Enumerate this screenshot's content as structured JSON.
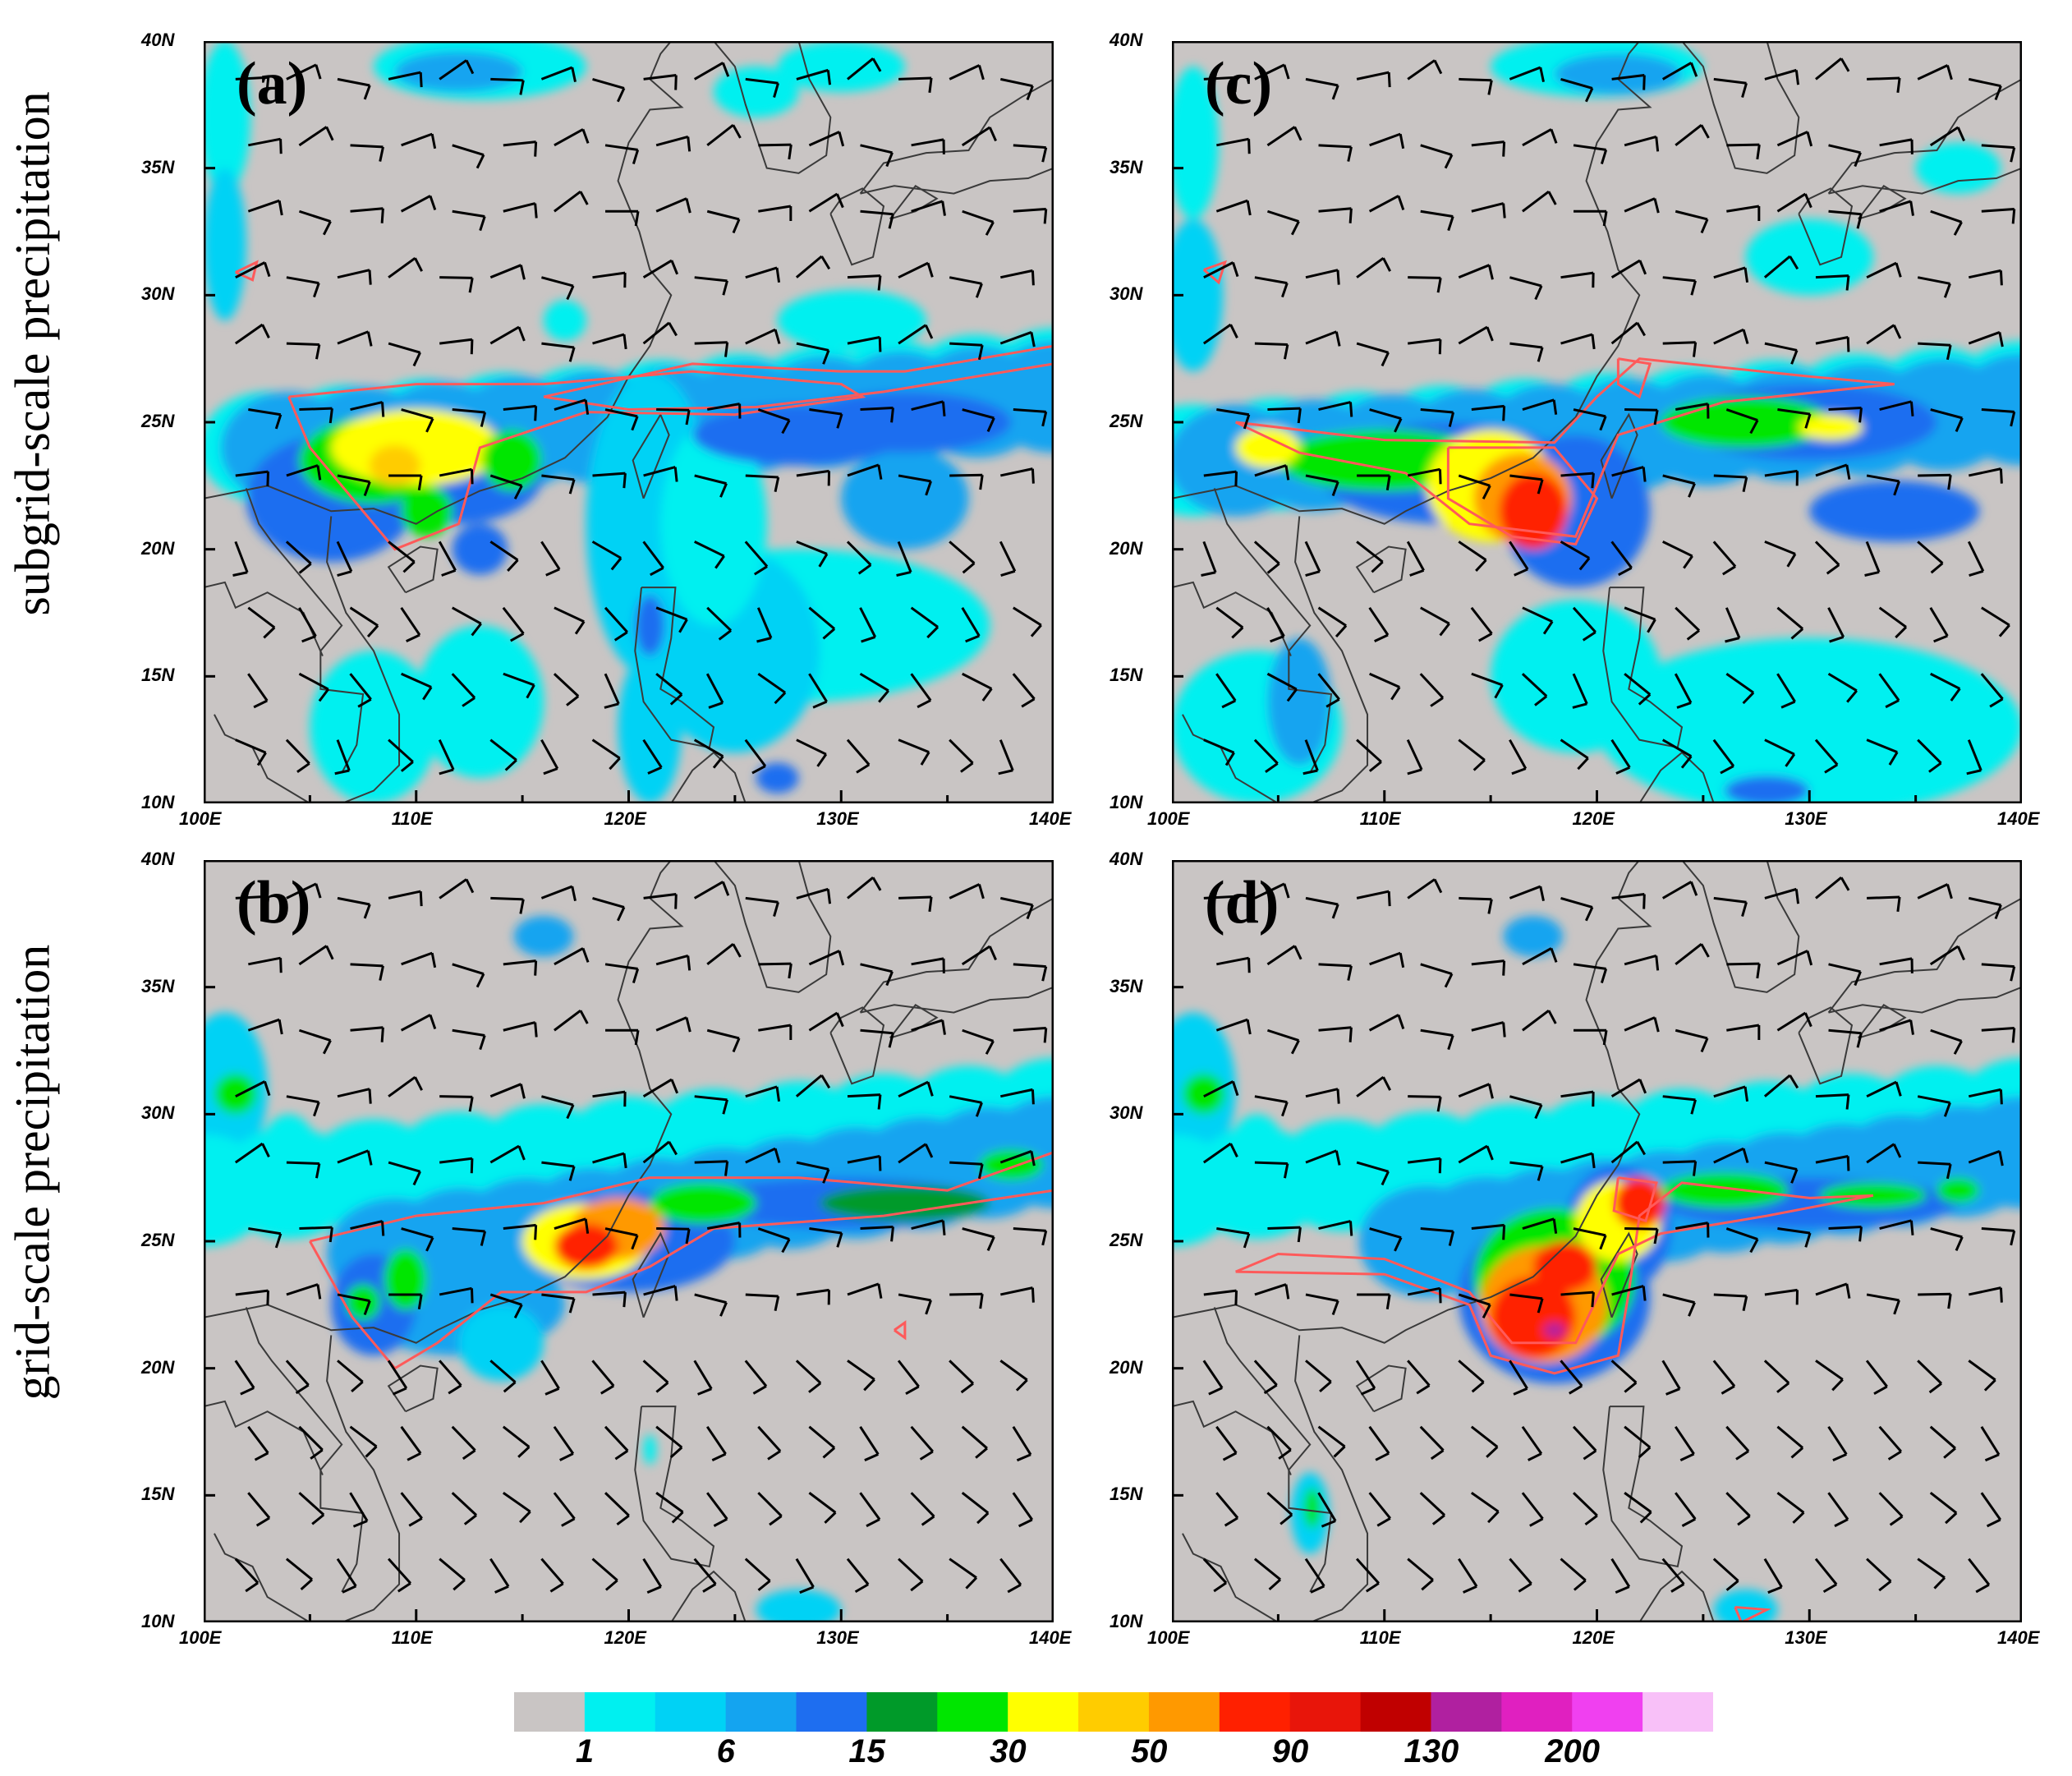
{
  "row_labels": {
    "top": "subgrid-scale  precipitation",
    "bottom": "grid-scale  precipitation"
  },
  "lat_ticks": [
    "40N",
    "35N",
    "30N",
    "25N",
    "20N",
    "15N",
    "10N"
  ],
  "lon_ticks": [
    "100E",
    "110E",
    "120E",
    "130E",
    "140E"
  ],
  "panels": [
    {
      "letter": "(a)",
      "id": "a"
    },
    {
      "letter": "(b)",
      "id": "b"
    },
    {
      "letter": "(c)",
      "id": "c"
    },
    {
      "letter": "(d)",
      "id": "d"
    }
  ],
  "colors": {
    "background_gray": "#c9c5c4",
    "land_outline": "#3a3a3a",
    "contour": "#ff5a5a",
    "barb": "#000000"
  },
  "colorbar": {
    "colors": [
      "#c9c5c4",
      "#00f0f0",
      "#00d2f5",
      "#14a4f0",
      "#1e6ef0",
      "#009a29",
      "#00e600",
      "#ffff00",
      "#ffcc00",
      "#ff9900",
      "#ff2000",
      "#e8150a",
      "#c00000",
      "#b020a0",
      "#e020c0",
      "#f040f0",
      "#f8c0f8"
    ],
    "labels": [
      "1",
      "6",
      "15",
      "30",
      "50",
      "90",
      "130",
      "200"
    ]
  }
}
